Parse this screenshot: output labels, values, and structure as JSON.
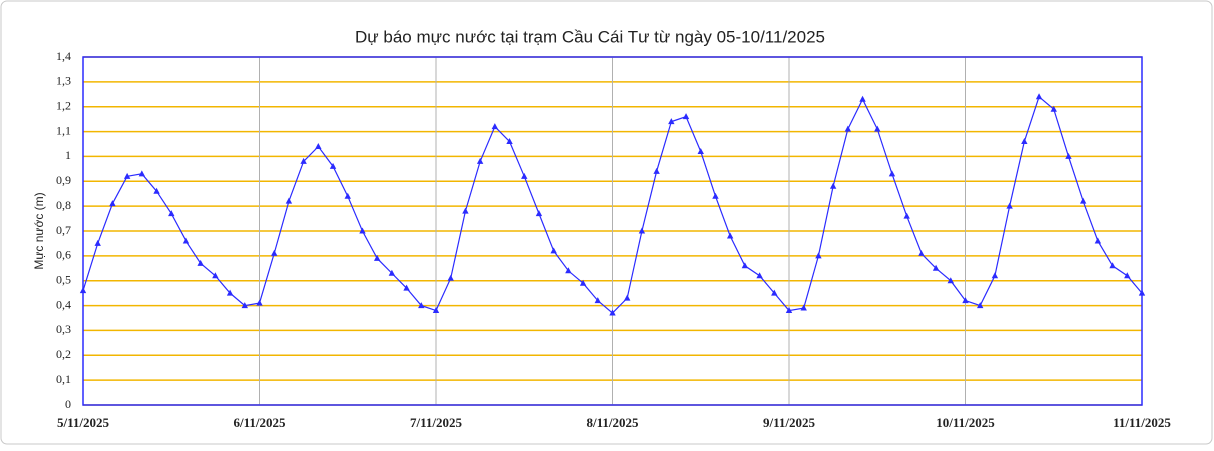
{
  "chart_data": {
    "type": "line",
    "title": "Dự báo mực nước tại trạm Cầu Cái Tư từ ngày 05-10/11/2025",
    "y_label": "Mực nước (m)",
    "categories": [
      "5/11/2025",
      null,
      null,
      null,
      null,
      null,
      null,
      null,
      null,
      null,
      null,
      null,
      "6/11/2025",
      null,
      null,
      null,
      null,
      null,
      null,
      null,
      null,
      null,
      null,
      null,
      "7/11/2025",
      null,
      null,
      null,
      null,
      null,
      null,
      null,
      null,
      null,
      null,
      null,
      "8/11/2025",
      null,
      null,
      null,
      null,
      null,
      null,
      null,
      null,
      null,
      null,
      null,
      "9/11/2025",
      null,
      null,
      null,
      null,
      null,
      null,
      null,
      null,
      null,
      null,
      null,
      "10/11/2025",
      null,
      null,
      null,
      null,
      null,
      null,
      null,
      null,
      null,
      null,
      null,
      "11/11/2025"
    ],
    "series": [
      {
        "name": "Mực nước",
        "color": "#2b2bff",
        "values": [
          0.46,
          0.65,
          0.81,
          0.92,
          0.93,
          0.86,
          0.77,
          0.66,
          0.57,
          0.52,
          0.45,
          0.4,
          0.41,
          0.61,
          0.82,
          0.98,
          1.04,
          0.96,
          0.84,
          0.7,
          0.59,
          0.53,
          0.47,
          0.4,
          0.38,
          0.51,
          0.78,
          0.98,
          1.12,
          1.06,
          0.92,
          0.77,
          0.62,
          0.54,
          0.49,
          0.42,
          0.37,
          0.43,
          0.7,
          0.94,
          1.14,
          1.16,
          1.02,
          0.84,
          0.68,
          0.56,
          0.52,
          0.45,
          0.38,
          0.39,
          0.6,
          0.88,
          1.11,
          1.23,
          1.11,
          0.93,
          0.76,
          0.61,
          0.55,
          0.5,
          0.42,
          0.4,
          0.52,
          0.8,
          1.06,
          1.24,
          1.19,
          1.0,
          0.82,
          0.66,
          0.56,
          0.52,
          0.45
        ]
      }
    ],
    "ylim": [
      0,
      1.4
    ],
    "yticks": [
      0,
      {
        "value": 0.1,
        "label": "0,1"
      },
      {
        "value": 0.2,
        "label": "0,2"
      },
      {
        "value": 0.3,
        "label": "0,3"
      },
      {
        "value": 0.4,
        "label": "0,4"
      },
      {
        "value": 0.5,
        "label": "0,5"
      },
      {
        "value": 0.6,
        "label": "0,6"
      },
      {
        "value": 0.7,
        "label": "0,7"
      },
      {
        "value": 0.8,
        "label": "0,8"
      },
      {
        "value": 0.9,
        "label": "0,9"
      },
      1,
      {
        "value": 1.1,
        "label": "1,1"
      },
      {
        "value": 1.2,
        "label": "1,2"
      },
      {
        "value": 1.3,
        "label": "1,3"
      },
      {
        "value": 1.4,
        "label": "1,4"
      }
    ],
    "grid": true,
    "grid_color": "#f2b600",
    "vgrid_color": "#b0b0b0",
    "frame_color": "#2b2bff"
  }
}
